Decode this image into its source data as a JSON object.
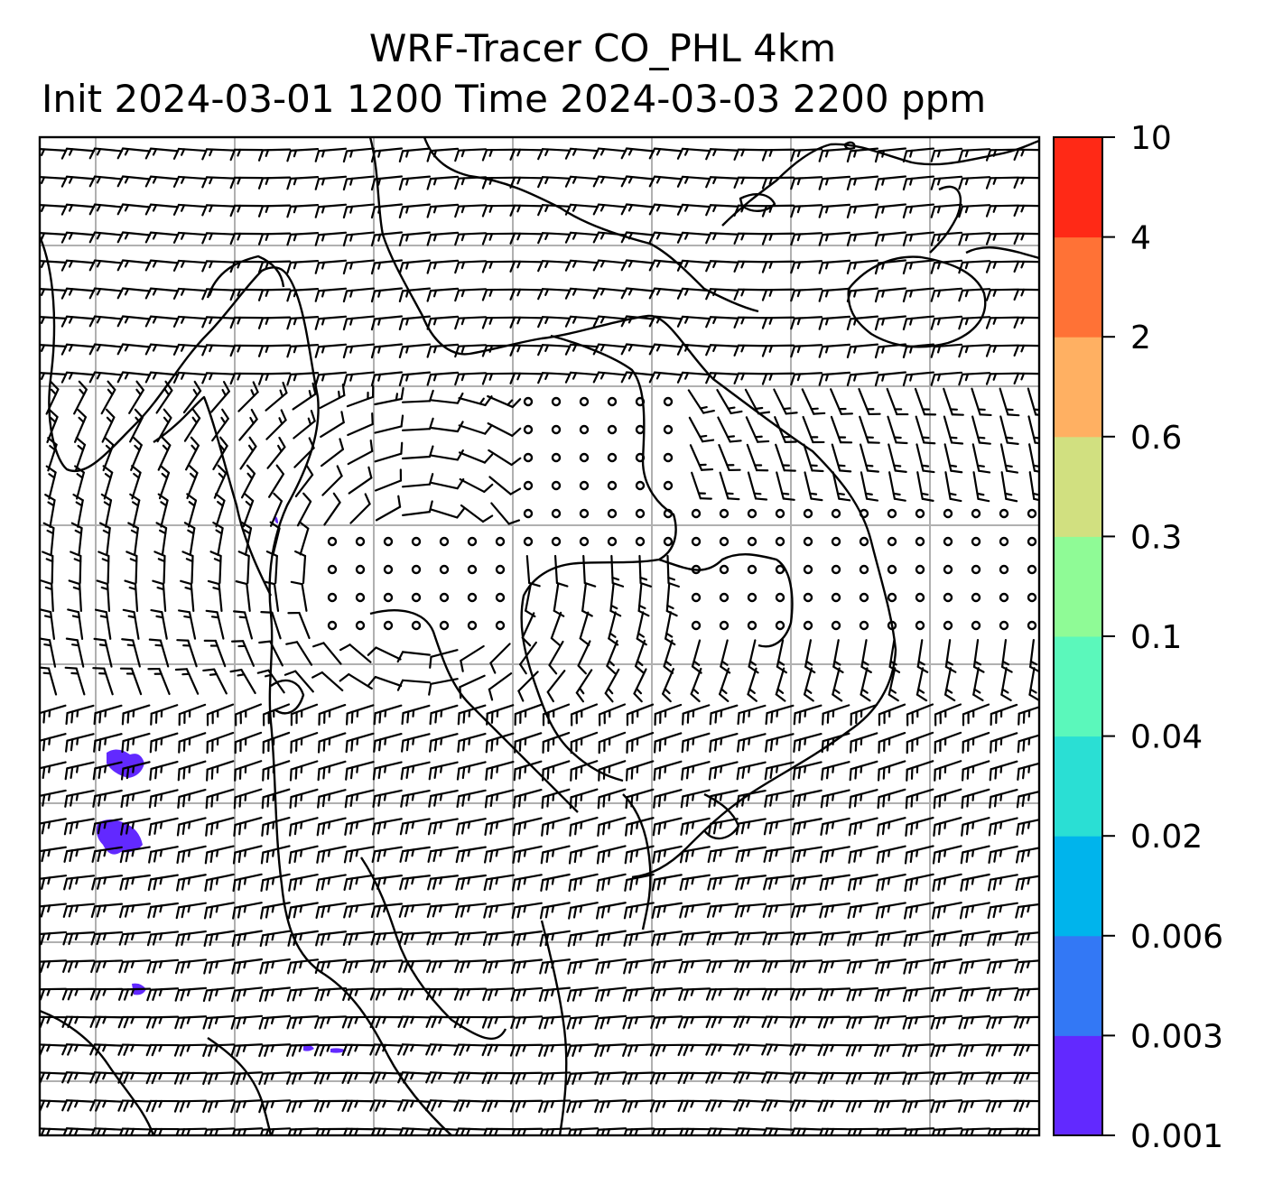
{
  "title_line1": "WRF-Tracer CO_PHL 4km",
  "title_line2": "Init 2024-03-01 1200 Time 2024-03-03 2200 ppm",
  "colorbar": {
    "levels": [
      "0.001",
      "0.003",
      "0.006",
      "0.02",
      "0.04",
      "0.1",
      "0.3",
      "0.6",
      "2",
      "4",
      "10"
    ],
    "colors": [
      "#6229ff",
      "#3378f5",
      "#00b4ec",
      "#2adfd4",
      "#5bf8bb",
      "#8ffb96",
      "#d1e080",
      "#ffb062",
      "#ff7236",
      "#ff2916"
    ]
  },
  "map": {
    "grid": "on",
    "gridline_color": "#b0b0b0",
    "coastline_color": "#000000",
    "barb_color": "#000000",
    "tracer_color": "#6229ff"
  }
}
